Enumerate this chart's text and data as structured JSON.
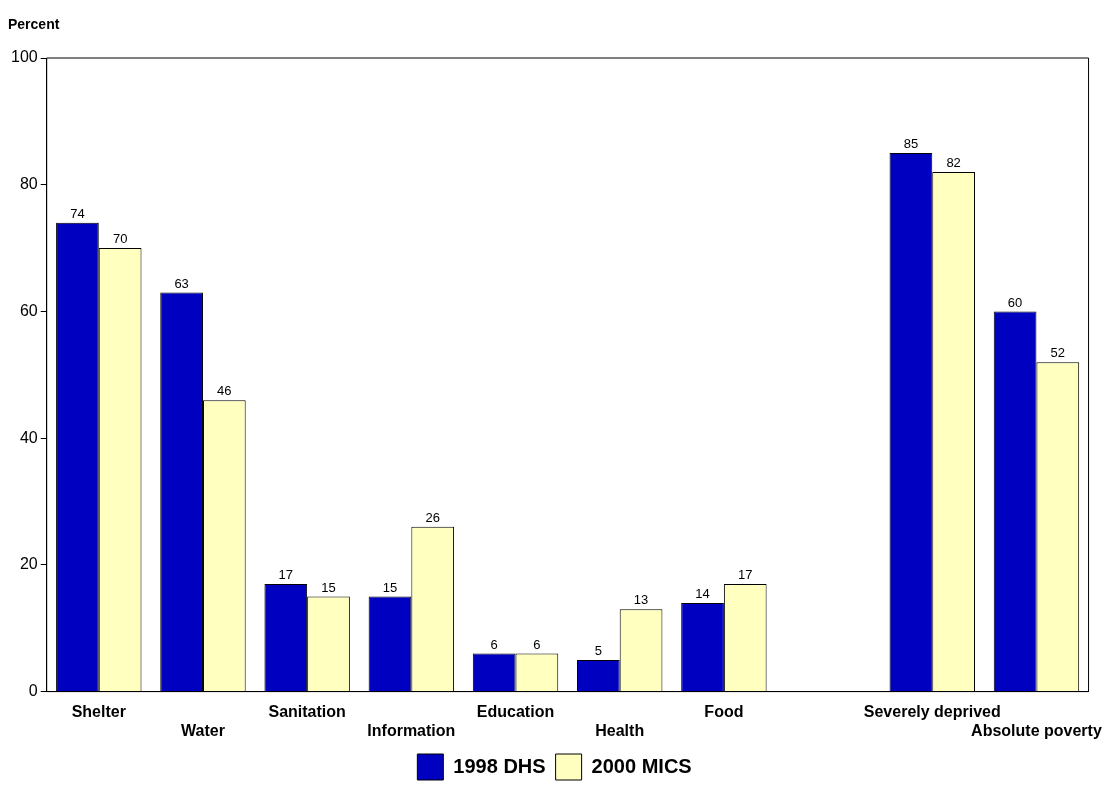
{
  "chart_data": {
    "type": "bar",
    "ylabel": "Percent",
    "categories": [
      "Shelter",
      "Water",
      "Sanitation",
      "Information",
      "Education",
      "Health",
      "Food",
      null,
      "Severely deprived",
      "Absolute poverty"
    ],
    "series": [
      {
        "name": "1998 DHS",
        "color": "#0000c0",
        "values": [
          74,
          63,
          17,
          15,
          6,
          5,
          14,
          null,
          85,
          60
        ]
      },
      {
        "name": "2000 MICS",
        "color": "#ffffc0",
        "values": [
          70,
          46,
          15,
          26,
          6,
          13,
          17,
          null,
          82,
          52
        ]
      }
    ],
    "ylim": [
      0,
      100
    ],
    "yticks": [
      0,
      20,
      40,
      60,
      80,
      100
    ],
    "grid": false,
    "legend": "bottom",
    "data_labels": true
  }
}
